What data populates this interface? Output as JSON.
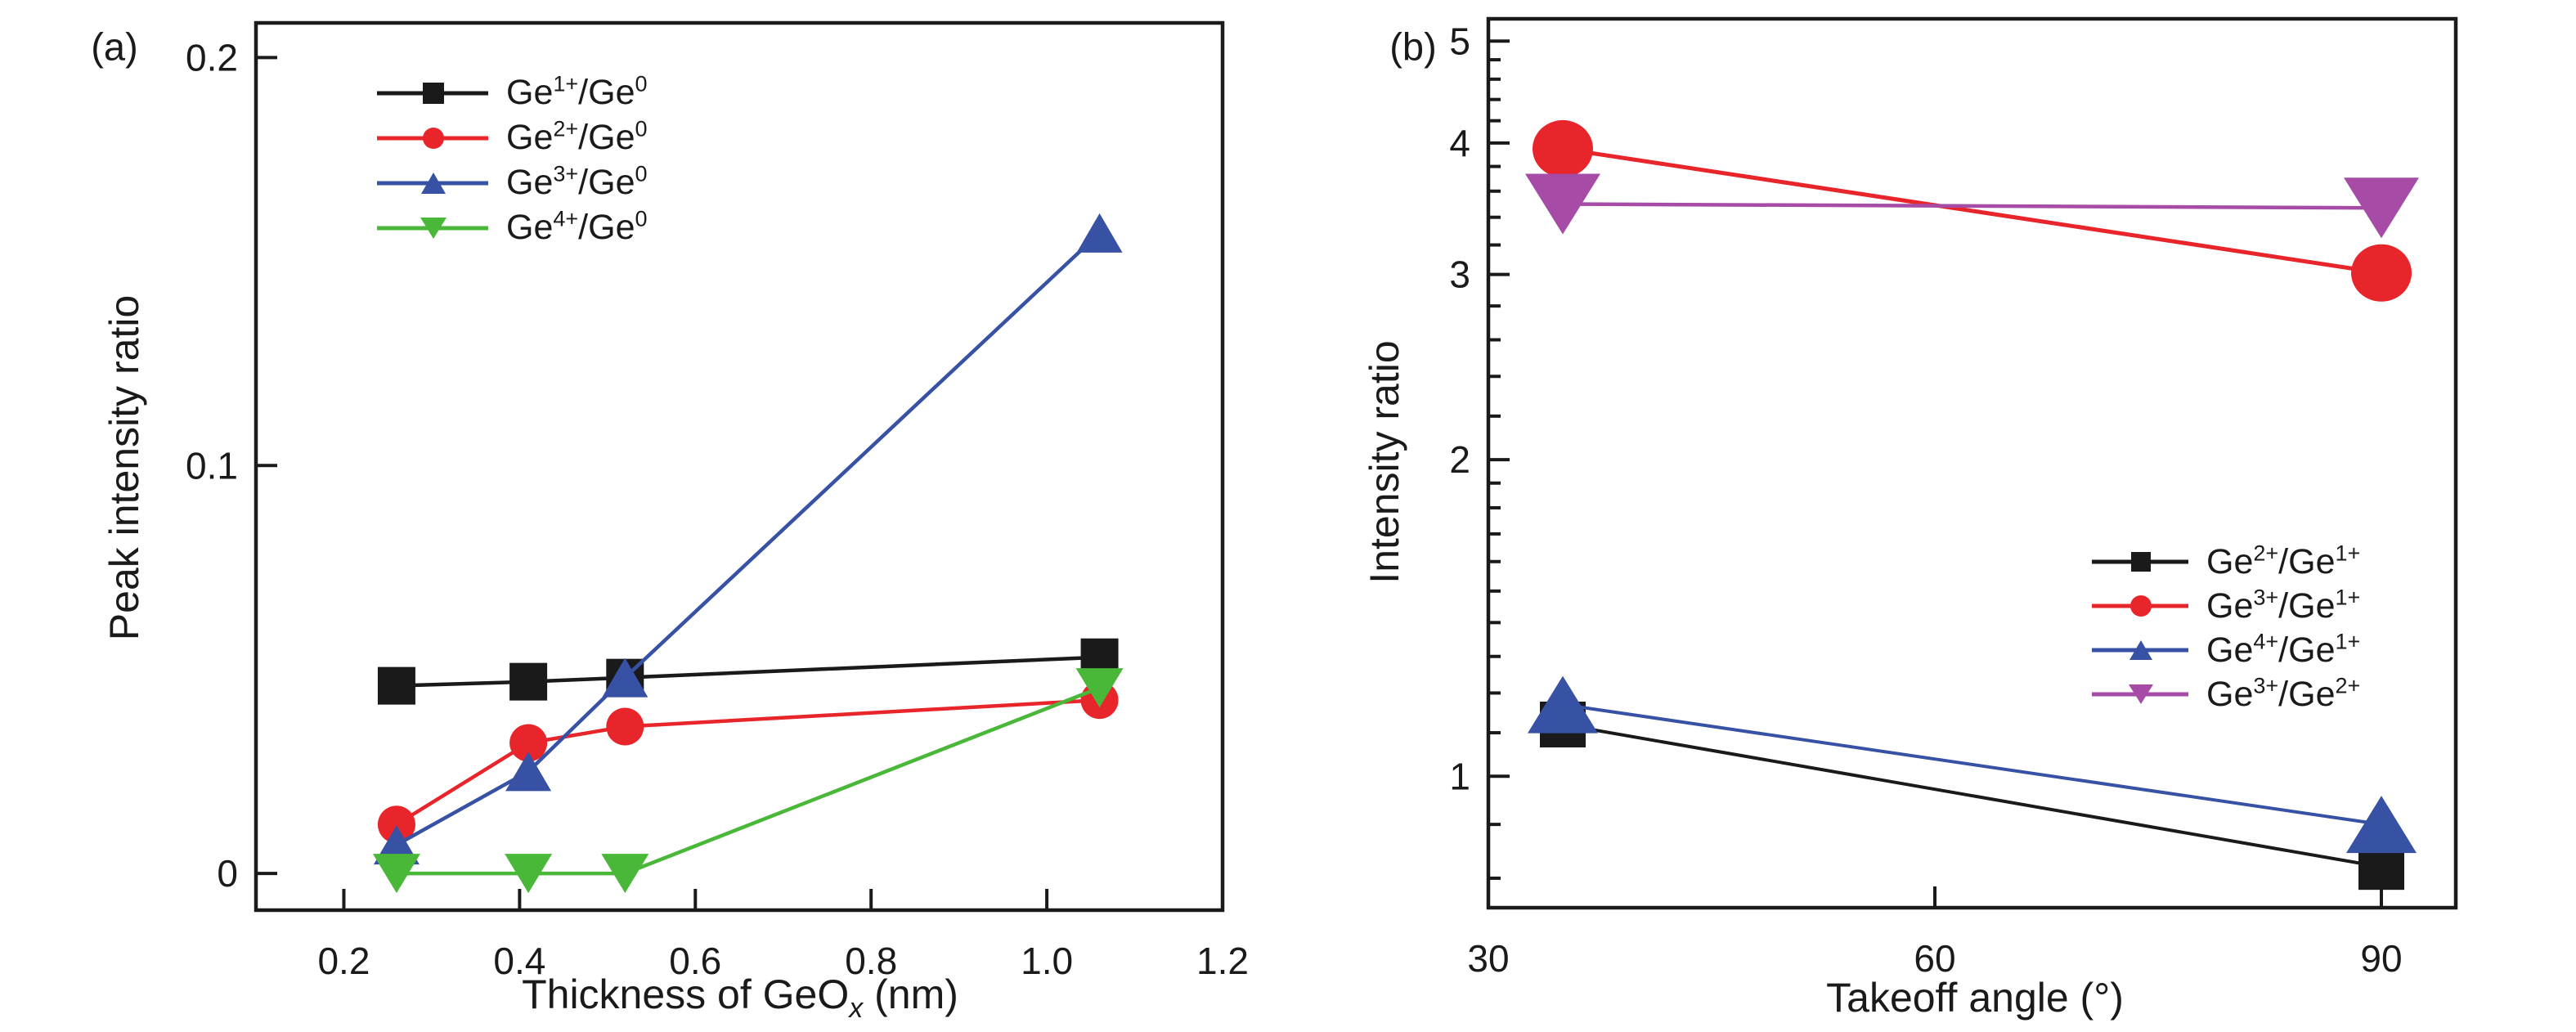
{
  "figure": {
    "background": "#ffffff",
    "text_color": "#1a1a1a"
  },
  "chart_data": [
    {
      "panel": "(a)",
      "type": "line",
      "x_axis": {
        "label_parts": {
          "pre": "Thickness of GeO",
          "sub": "x",
          "post": " (nm)"
        },
        "scale": "linear",
        "range": [
          0.1,
          1.2
        ],
        "ticks": [
          0.2,
          0.4,
          0.6,
          0.8,
          1.0,
          1.2
        ],
        "tick_labels": [
          "0.2",
          "0.4",
          "0.6",
          "0.8",
          "1.0",
          "1.2"
        ]
      },
      "y_axis": {
        "label": "Peak intensity ratio",
        "scale": "linear",
        "range": [
          -0.009,
          0.2085
        ],
        "ticks": [
          0,
          0.1,
          0.2
        ],
        "tick_labels": [
          "0",
          "0.1",
          "0.2"
        ]
      },
      "x": [
        0.26,
        0.41,
        0.52,
        1.06
      ],
      "series": [
        {
          "name_parts": {
            "p1": "Ge",
            "s1": "1+",
            "p2": "/Ge",
            "s2": "0"
          },
          "color": "#1a1a1a",
          "marker": "square",
          "values": [
            0.046,
            0.047,
            0.048,
            0.053
          ]
        },
        {
          "name_parts": {
            "p1": "Ge",
            "s1": "2+",
            "p2": "/Ge",
            "s2": "0"
          },
          "color": "#e8252a",
          "marker": "circle",
          "values": [
            0.012,
            0.032,
            0.036,
            0.0425
          ]
        },
        {
          "name_parts": {
            "p1": "Ge",
            "s1": "3+",
            "p2": "/Ge",
            "s2": "0"
          },
          "color": "#3751a5",
          "marker": "triangle-up",
          "values": [
            0.007,
            0.025,
            0.048,
            0.157
          ]
        },
        {
          "name_parts": {
            "p1": "Ge",
            "s1": "4+",
            "p2": "/Ge",
            "s2": "0"
          },
          "color": "#49b838",
          "marker": "triangle-down",
          "values": [
            0.0,
            0.0,
            0.0,
            0.0455
          ]
        }
      ],
      "legend_position": "upper-left",
      "grid": false
    },
    {
      "panel": "(b)",
      "type": "line",
      "x_axis": {
        "label": "Takeoff angle (°)",
        "scale": "linear",
        "range": [
          30,
          95
        ],
        "ticks": [
          30,
          60,
          90
        ],
        "tick_labels": [
          "30",
          "60",
          "90"
        ]
      },
      "y_axis": {
        "label": "Intensity ratio",
        "scale": "log",
        "range": [
          0.75,
          5.25
        ],
        "ticks": [
          1,
          2,
          3,
          4,
          5
        ],
        "tick_labels": [
          "1",
          "2",
          "3",
          "4",
          "5"
        ],
        "minor_ticks": [
          0.8,
          0.9,
          1.1,
          1.2,
          1.3,
          1.4,
          1.5,
          1.6,
          1.7,
          1.8,
          1.9,
          2.2,
          2.4,
          2.6,
          2.8,
          3.2,
          3.4,
          3.6,
          3.8,
          4.2,
          4.4,
          4.6,
          4.8
        ]
      },
      "x": [
        35,
        90
      ],
      "series": [
        {
          "name_parts": {
            "p1": "Ge",
            "s1": "2+",
            "p2": "/Ge",
            "s2": "1+"
          },
          "color": "#1a1a1a",
          "marker": "square",
          "values": [
            1.12,
            0.82
          ]
        },
        {
          "name_parts": {
            "p1": "Ge",
            "s1": "3+",
            "p2": "/Ge",
            "s2": "1+"
          },
          "color": "#e8252a",
          "marker": "circle",
          "values": [
            3.95,
            3.01
          ]
        },
        {
          "name_parts": {
            "p1": "Ge",
            "s1": "4+",
            "p2": "/Ge",
            "s2": "1+"
          },
          "color": "#3751a5",
          "marker": "triangle-up",
          "values": [
            1.17,
            0.9
          ]
        },
        {
          "name_parts": {
            "p1": "Ge",
            "s1": "3+",
            "p2": "/Ge",
            "s2": "2+"
          },
          "color": "#a64ca6",
          "marker": "triangle-down",
          "values": [
            3.5,
            3.47
          ]
        }
      ],
      "legend_position": "center-right",
      "grid": false
    }
  ]
}
